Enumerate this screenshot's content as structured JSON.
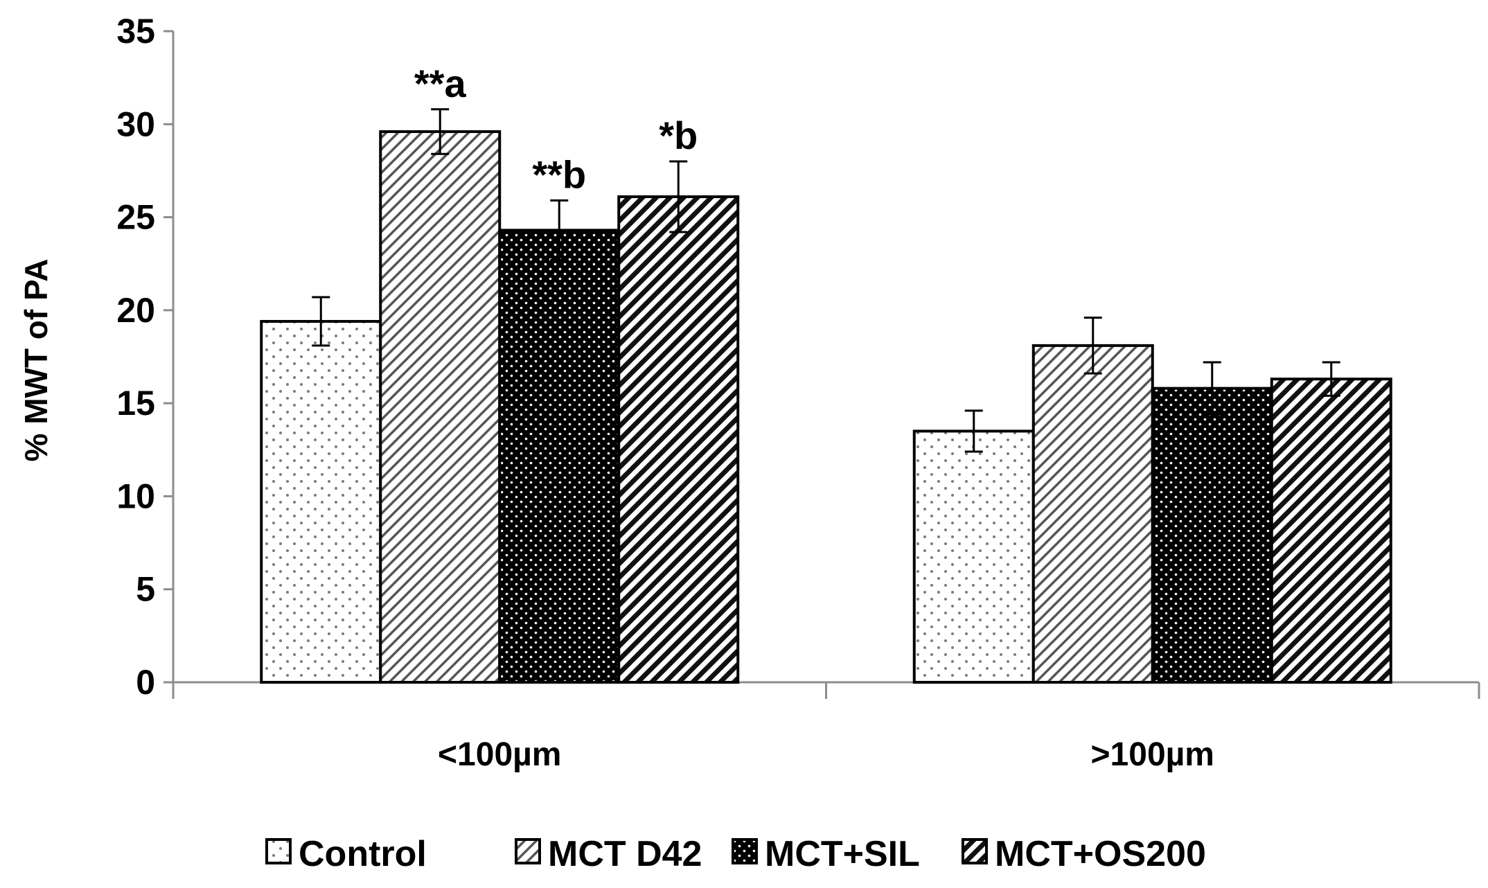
{
  "chart_data": {
    "type": "bar",
    "title": "",
    "xlabel": "",
    "ylabel": "% MWT of PA",
    "ylim": [
      0,
      35
    ],
    "yticks": [
      0,
      5,
      10,
      15,
      20,
      25,
      30,
      35
    ],
    "grid": false,
    "legend_position": "bottom",
    "categories": [
      "<100µm",
      ">100µm"
    ],
    "series": [
      {
        "name": "Control",
        "pattern": "dots",
        "color": "#ffffff",
        "values": [
          19.4,
          13.5
        ],
        "errors": [
          1.3,
          1.1
        ],
        "annotations": [
          "",
          ""
        ]
      },
      {
        "name": "MCT D42",
        "pattern": "light-diagonal",
        "color": "#ffffff",
        "values": [
          29.6,
          18.1
        ],
        "errors": [
          1.2,
          1.5
        ],
        "annotations": [
          "**a",
          ""
        ]
      },
      {
        "name": "MCT+SIL",
        "pattern": "dark-dots",
        "color": "#000000",
        "values": [
          24.3,
          15.8
        ],
        "errors": [
          1.6,
          1.4
        ],
        "annotations": [
          "**b",
          ""
        ]
      },
      {
        "name": "MCT+OS200",
        "pattern": "dark-diagonal",
        "color": "#000000",
        "values": [
          26.1,
          16.3
        ],
        "errors": [
          1.9,
          0.9
        ],
        "annotations": [
          "*b",
          ""
        ]
      }
    ]
  }
}
